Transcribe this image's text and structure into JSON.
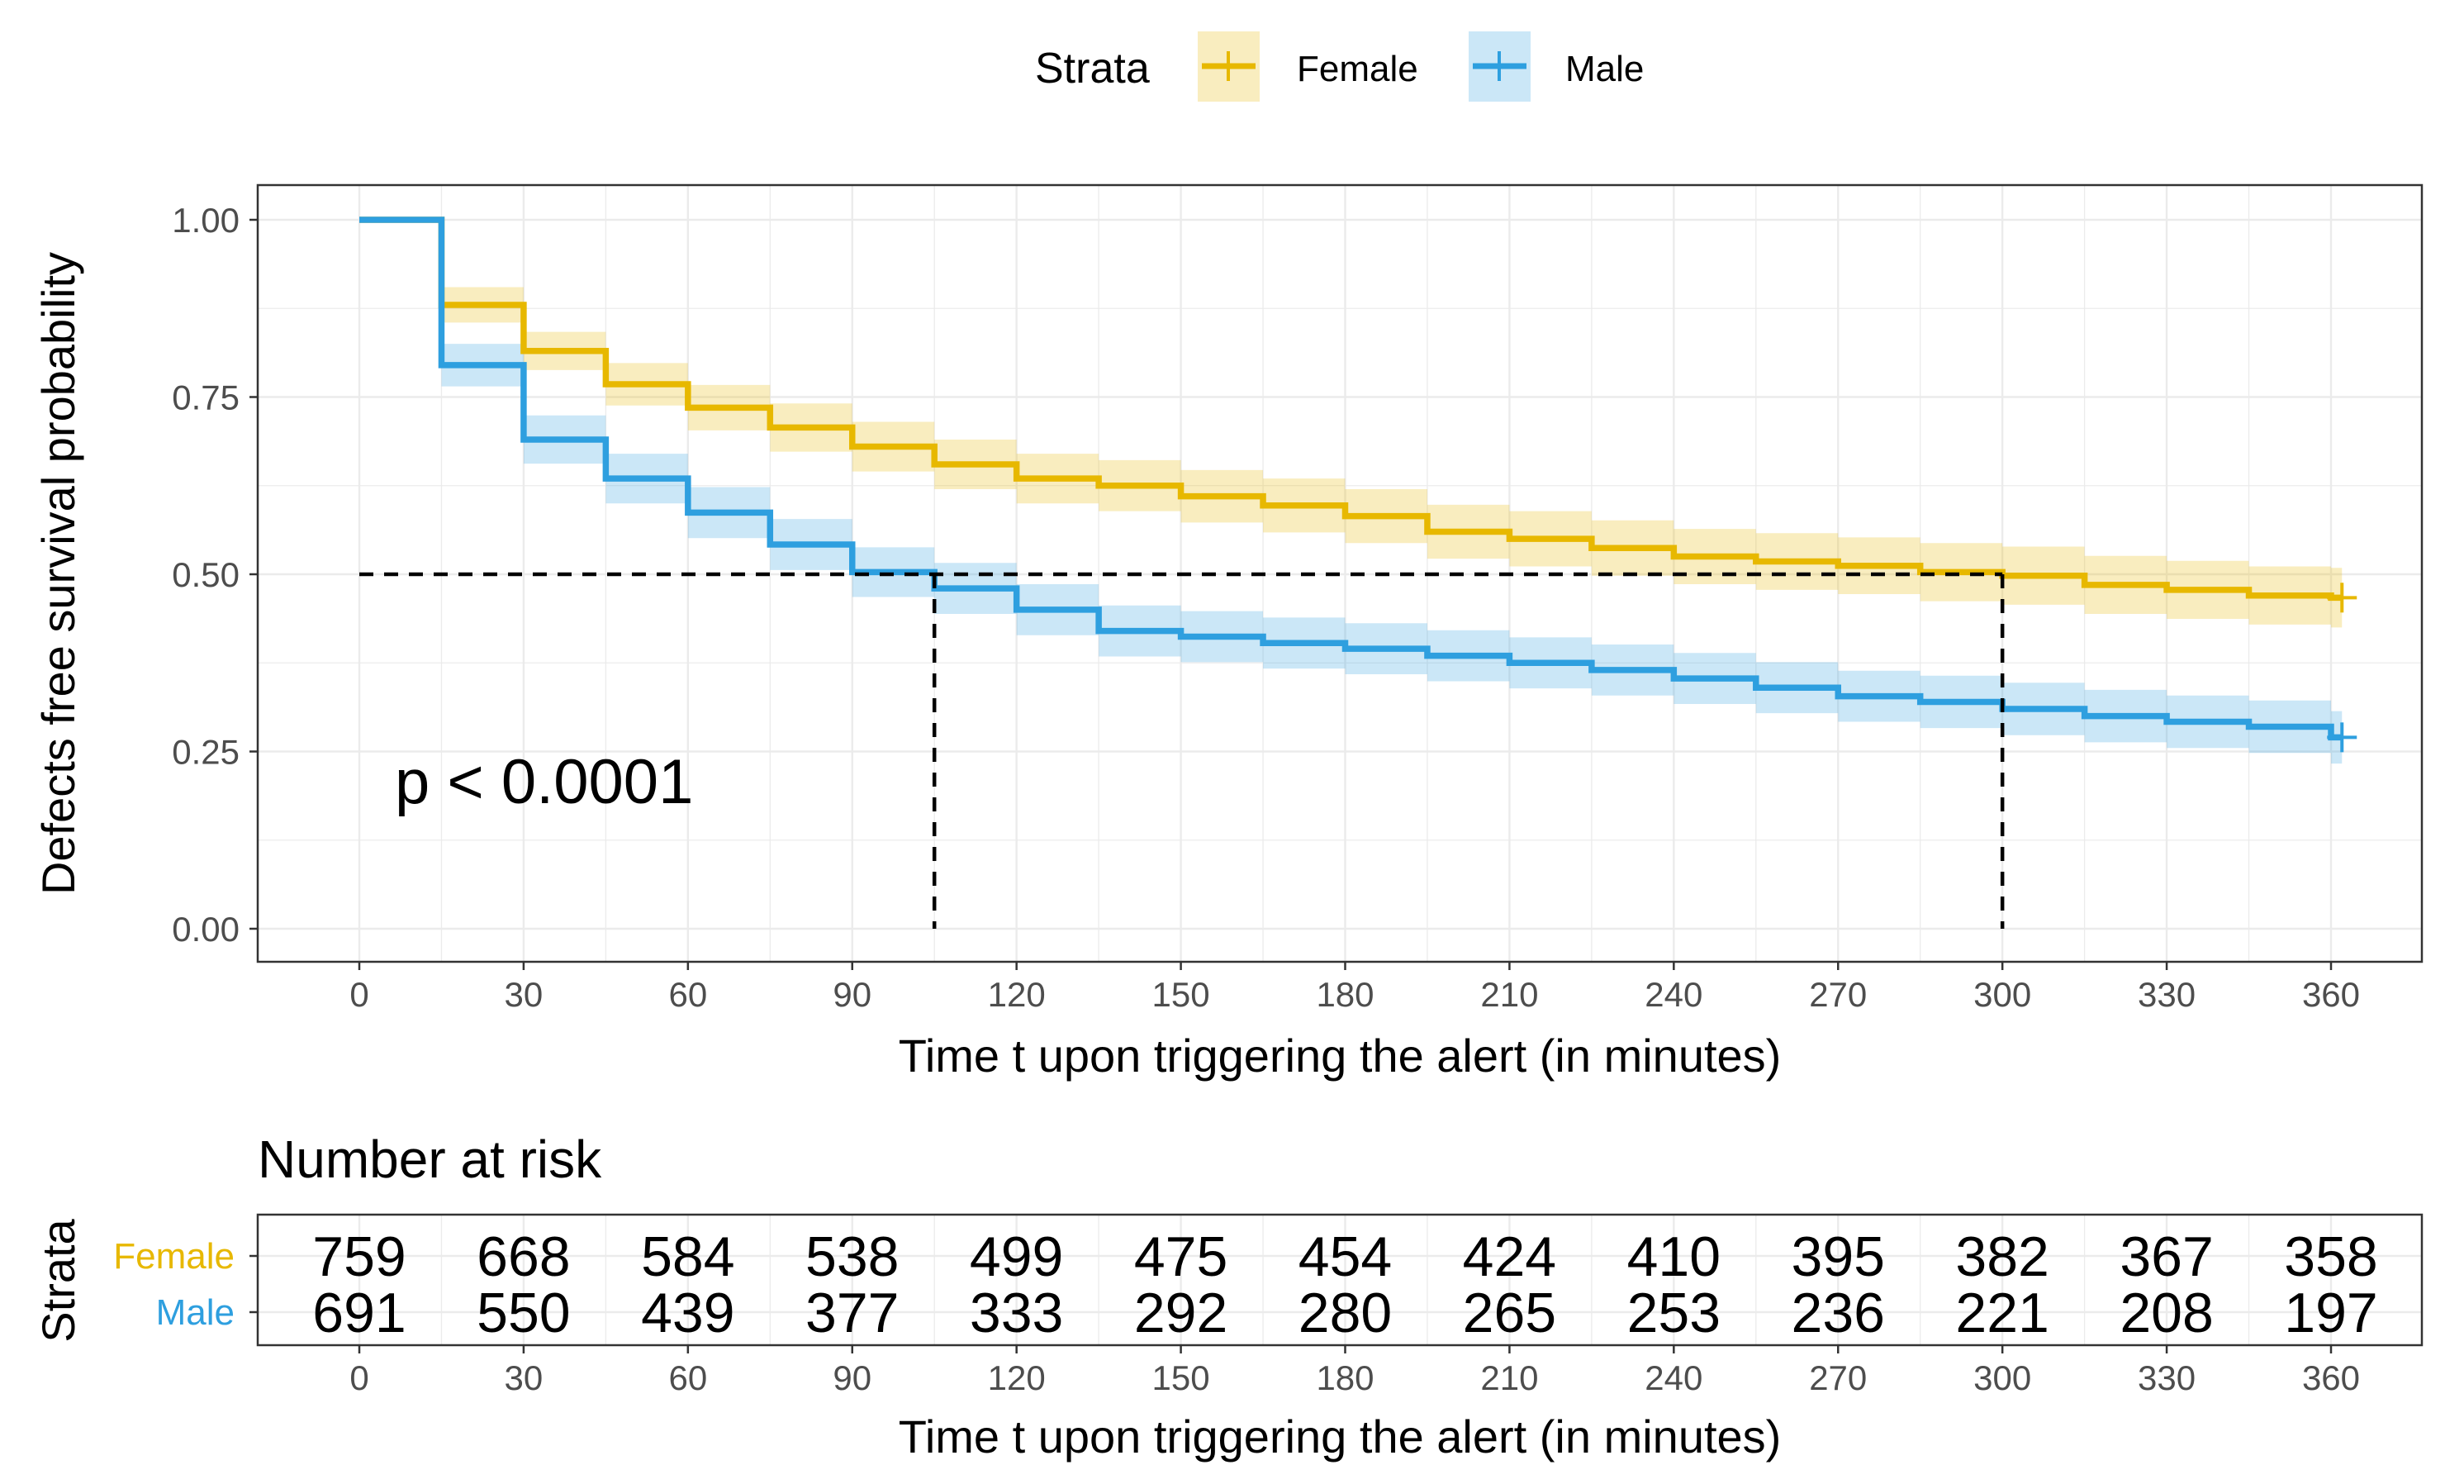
{
  "chart_data": {
    "type": "line",
    "subtype": "kaplan-meier survival curve with number-at-risk table",
    "legend": {
      "title": "Strata",
      "entries": [
        {
          "name": "Female",
          "color": "#E7B800"
        },
        {
          "name": "Male",
          "color": "#2E9FDF"
        }
      ],
      "placement": "top"
    },
    "xlabel": "Time t upon triggering the alert (in minutes)",
    "ylabel": "Defects free survival probability",
    "xlim": [
      0,
      360
    ],
    "ylim": [
      0,
      1
    ],
    "xticks": [
      "0",
      "30",
      "60",
      "90",
      "120",
      "150",
      "180",
      "210",
      "240",
      "270",
      "300",
      "330",
      "360"
    ],
    "yticks": [
      "0.00",
      "0.25",
      "0.50",
      "0.75",
      "1.00"
    ],
    "grid": true,
    "annotation": "p < 0.0001",
    "median_survival": {
      "y": 0.5,
      "Male": 105,
      "Female": 300
    },
    "series": [
      {
        "name": "Female",
        "color": "#E7B800",
        "time": [
          0,
          15,
          30,
          45,
          60,
          75,
          90,
          105,
          120,
          135,
          150,
          165,
          180,
          195,
          210,
          225,
          240,
          255,
          270,
          285,
          300,
          315,
          330,
          345,
          360
        ],
        "surv": [
          1.0,
          0.88,
          0.815,
          0.768,
          0.735,
          0.707,
          0.68,
          0.655,
          0.635,
          0.625,
          0.61,
          0.597,
          0.582,
          0.56,
          0.55,
          0.537,
          0.525,
          0.518,
          0.512,
          0.503,
          0.498,
          0.485,
          0.478,
          0.47,
          0.467
        ],
        "lower": [
          1.0,
          0.855,
          0.788,
          0.738,
          0.703,
          0.673,
          0.645,
          0.62,
          0.6,
          0.589,
          0.573,
          0.559,
          0.544,
          0.522,
          0.511,
          0.498,
          0.486,
          0.478,
          0.472,
          0.462,
          0.457,
          0.444,
          0.437,
          0.429,
          0.425
        ],
        "upper": [
          1.0,
          0.905,
          0.842,
          0.798,
          0.767,
          0.741,
          0.715,
          0.69,
          0.67,
          0.661,
          0.647,
          0.635,
          0.62,
          0.598,
          0.589,
          0.576,
          0.564,
          0.558,
          0.552,
          0.544,
          0.539,
          0.526,
          0.519,
          0.511,
          0.509
        ]
      },
      {
        "name": "Male",
        "color": "#2E9FDF",
        "time": [
          0,
          15,
          30,
          45,
          60,
          75,
          90,
          105,
          120,
          135,
          150,
          165,
          180,
          195,
          210,
          225,
          240,
          255,
          270,
          285,
          300,
          315,
          330,
          345,
          360
        ],
        "surv": [
          1.0,
          0.795,
          0.69,
          0.635,
          0.587,
          0.542,
          0.503,
          0.48,
          0.45,
          0.42,
          0.412,
          0.403,
          0.395,
          0.385,
          0.375,
          0.365,
          0.353,
          0.34,
          0.328,
          0.32,
          0.31,
          0.3,
          0.292,
          0.285,
          0.27
        ],
        "lower": [
          1.0,
          0.765,
          0.656,
          0.6,
          0.551,
          0.506,
          0.468,
          0.444,
          0.414,
          0.384,
          0.376,
          0.367,
          0.359,
          0.349,
          0.339,
          0.329,
          0.317,
          0.304,
          0.292,
          0.283,
          0.273,
          0.263,
          0.255,
          0.248,
          0.233
        ],
        "upper": [
          1.0,
          0.825,
          0.724,
          0.67,
          0.623,
          0.578,
          0.538,
          0.516,
          0.486,
          0.456,
          0.448,
          0.439,
          0.431,
          0.421,
          0.411,
          0.401,
          0.389,
          0.376,
          0.364,
          0.357,
          0.347,
          0.337,
          0.329,
          0.322,
          0.307
        ]
      }
    ],
    "risk_table": {
      "title": "Number at risk",
      "ylabel": "Strata",
      "xlabel": "Time t upon triggering the alert (in minutes)",
      "times": [
        "0",
        "30",
        "60",
        "90",
        "120",
        "150",
        "180",
        "210",
        "240",
        "270",
        "300",
        "330",
        "360"
      ],
      "rows": [
        {
          "name": "Female",
          "color": "#E7B800",
          "values": [
            "759",
            "668",
            "584",
            "538",
            "499",
            "475",
            "454",
            "424",
            "410",
            "395",
            "382",
            "367",
            "358"
          ]
        },
        {
          "name": "Male",
          "color": "#2E9FDF",
          "values": [
            "691",
            "550",
            "439",
            "377",
            "333",
            "292",
            "280",
            "265",
            "253",
            "236",
            "221",
            "208",
            "197"
          ]
        }
      ]
    }
  }
}
